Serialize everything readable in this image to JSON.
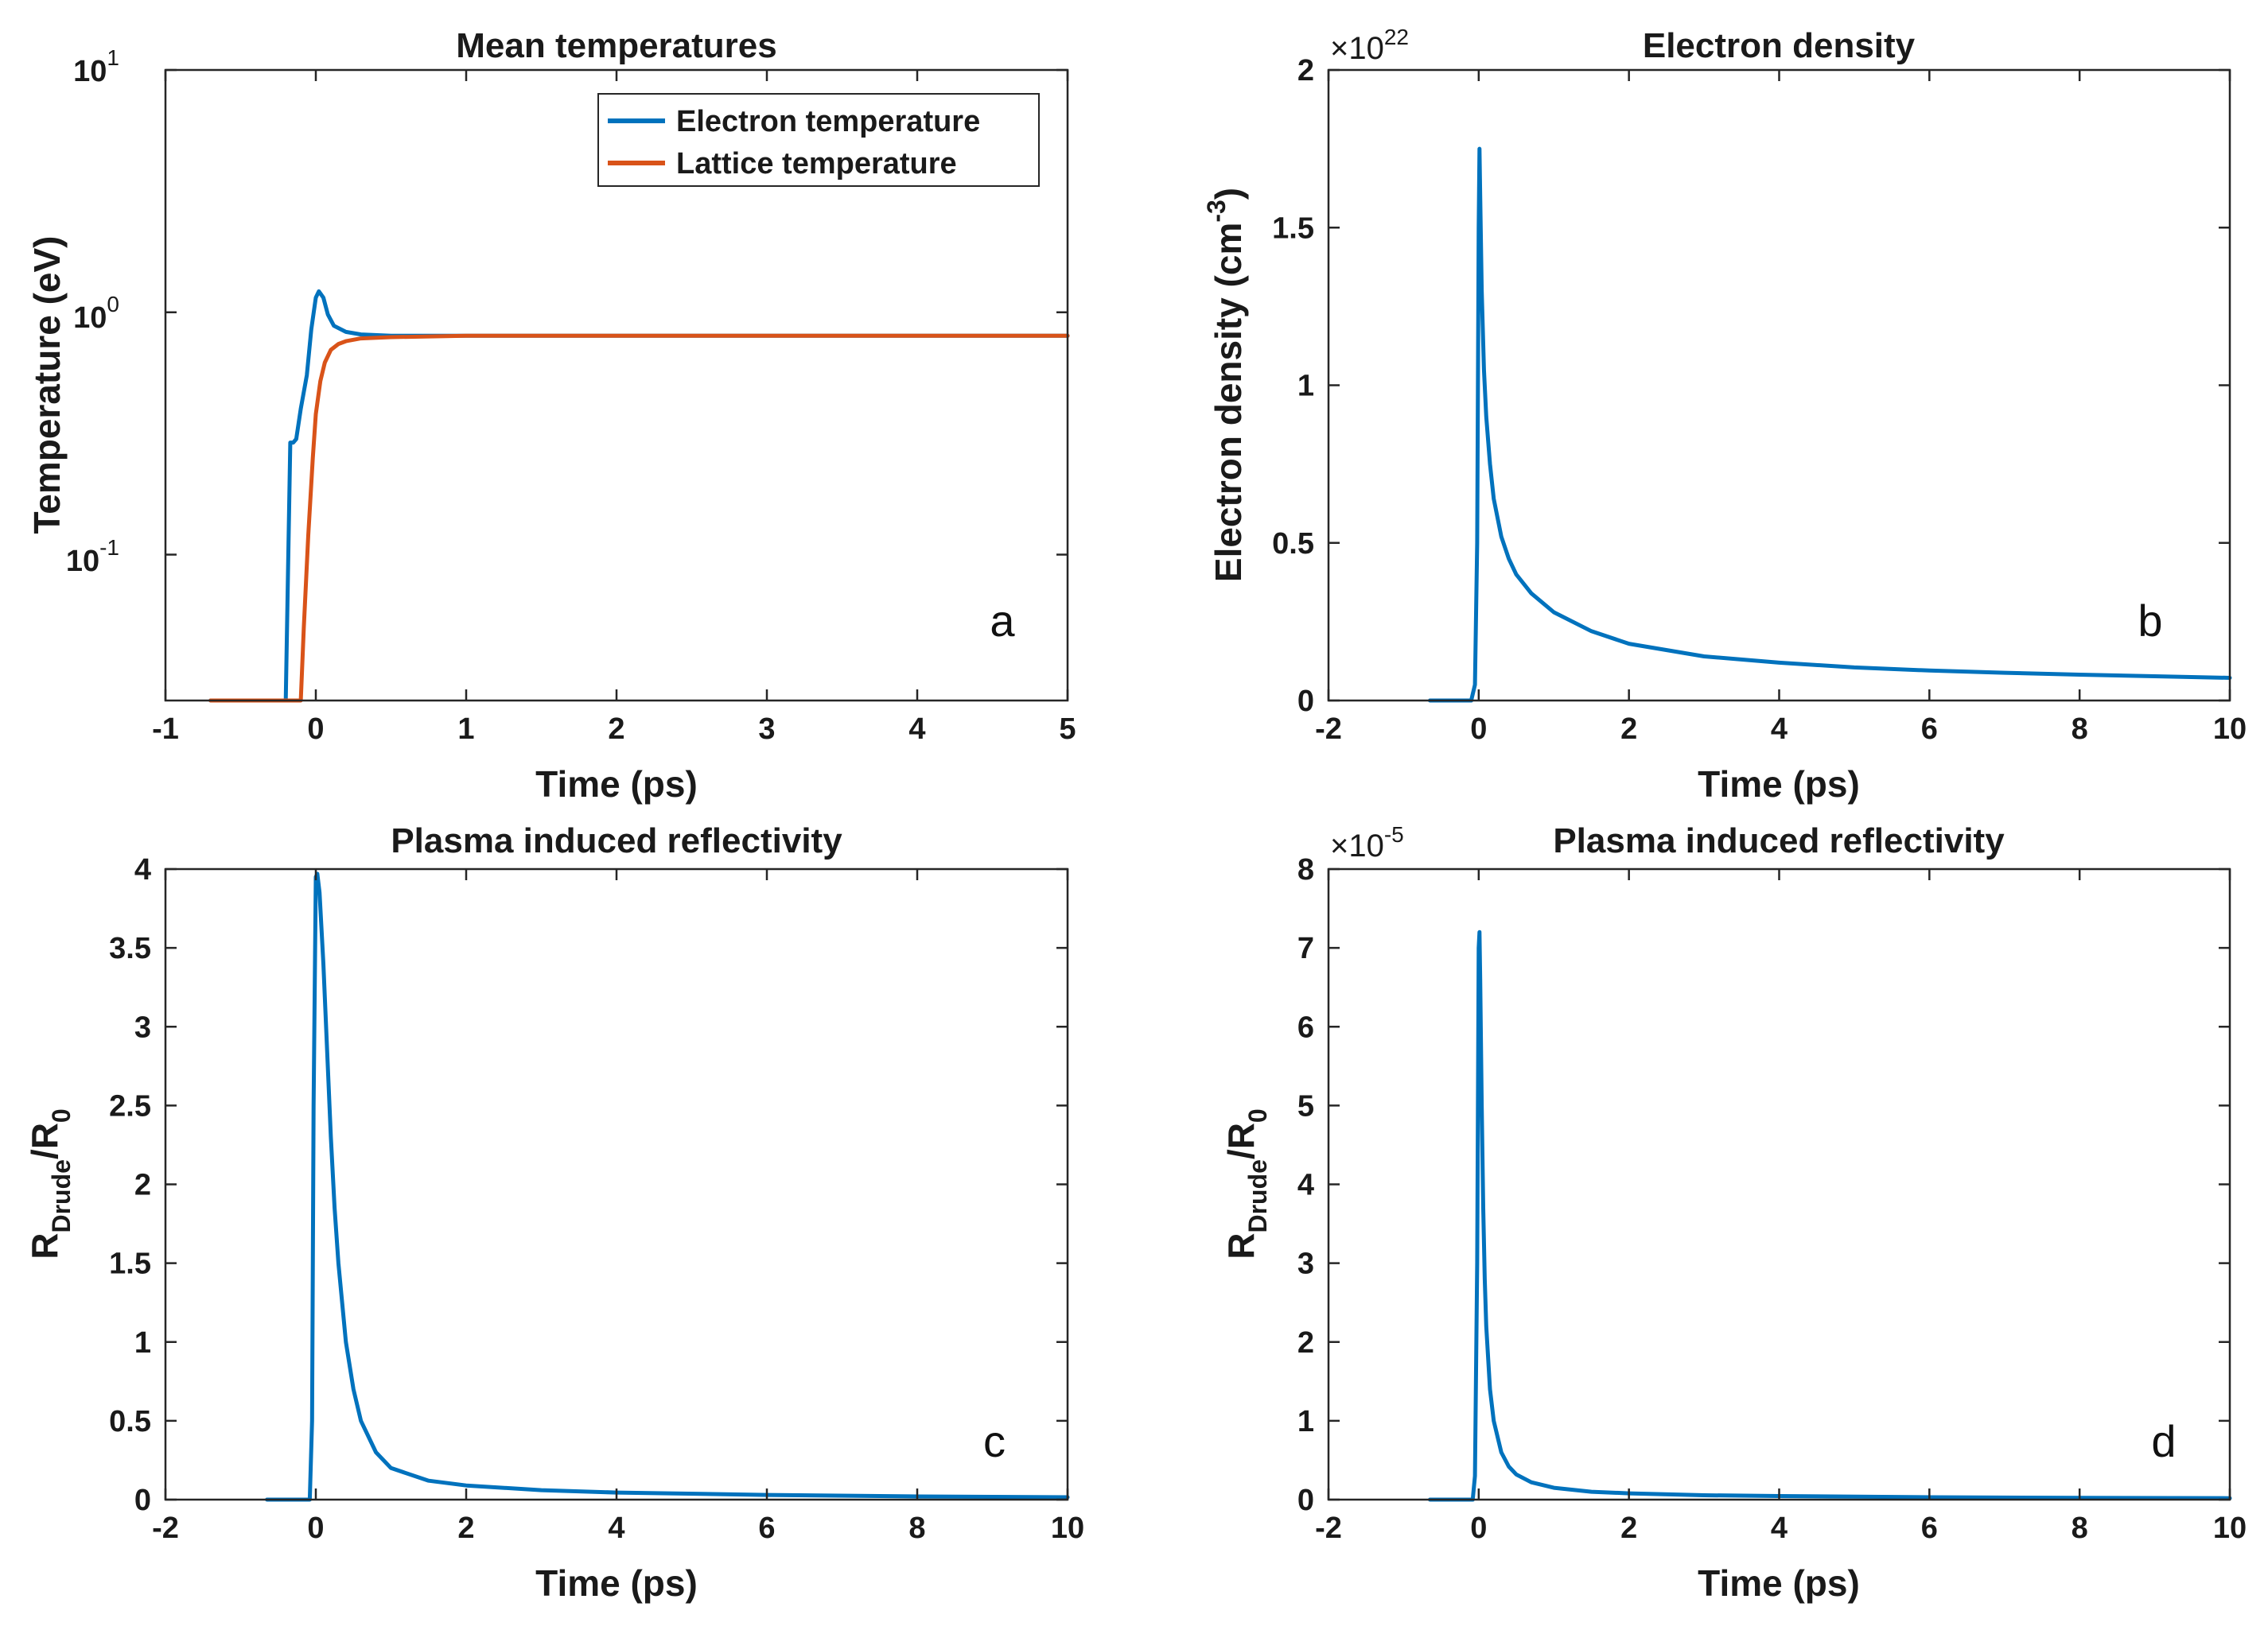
{
  "figure": {
    "colors": {
      "series_blue": "#0072BD",
      "series_orange": "#D95319",
      "axes": "#262626"
    },
    "panels": [
      {
        "id": "a",
        "letter": "a",
        "title": "Mean temperatures",
        "xlabel": "Time (ps)",
        "ylabel": "Temperature (eV)",
        "xticks": [
          "-1",
          "0",
          "1",
          "2",
          "3",
          "4",
          "5"
        ],
        "yticks_log": [
          {
            "base": "10",
            "exp": "1"
          },
          {
            "base": "10",
            "exp": "0"
          },
          {
            "base": "10",
            "exp": "-1"
          }
        ],
        "legend": [
          "Electron temperature",
          "Lattice temperature"
        ]
      },
      {
        "id": "b",
        "letter": "b",
        "title": "Electron density",
        "xlabel": "Time (ps)",
        "ylabel_main": "Electron density (cm",
        "ylabel_sup": "-3",
        "ylabel_end": ")",
        "xticks": [
          "-2",
          "0",
          "2",
          "4",
          "6",
          "8",
          "10"
        ],
        "yticks": [
          "0",
          "0.5",
          "1",
          "1.5",
          "2"
        ],
        "exponent_prefix": "×10",
        "exponent": "22"
      },
      {
        "id": "c",
        "letter": "c",
        "title": "Plasma induced reflectivity",
        "xlabel": "Time (ps)",
        "ylabel_r": "R",
        "ylabel_sub": "Drude",
        "ylabel_slash": "/R",
        "ylabel_sub2": "0",
        "xticks": [
          "-2",
          "0",
          "2",
          "4",
          "6",
          "8",
          "10"
        ],
        "yticks": [
          "0",
          "0.5",
          "1",
          "1.5",
          "2",
          "2.5",
          "3",
          "3.5",
          "4"
        ]
      },
      {
        "id": "d",
        "letter": "d",
        "title": "Plasma induced reflectivity",
        "xlabel": "Time (ps)",
        "ylabel_r": "R",
        "ylabel_sub": "Drude",
        "ylabel_slash": "/R",
        "ylabel_sub2": "0",
        "xticks": [
          "-2",
          "0",
          "2",
          "4",
          "6",
          "8",
          "10"
        ],
        "yticks": [
          "0",
          "1",
          "2",
          "3",
          "4",
          "5",
          "6",
          "7",
          "8"
        ],
        "exponent_prefix": "×10",
        "exponent": "-5"
      }
    ]
  },
  "chart_data": [
    {
      "type": "line",
      "title": "Mean temperatures",
      "xlabel": "Time (ps)",
      "ylabel": "Temperature (eV)",
      "xlim": [
        -1,
        5
      ],
      "ylim": [
        0.025,
        10
      ],
      "yscale": "log",
      "legend_placement": "top-right",
      "series": [
        {
          "name": "Electron temperature",
          "color": "#0072BD",
          "x": [
            -0.7,
            -0.2,
            -0.17,
            -0.15,
            -0.13,
            -0.1,
            -0.06,
            -0.03,
            0.0,
            0.02,
            0.05,
            0.08,
            0.12,
            0.2,
            0.3,
            0.5,
            1.0,
            2.0,
            3.0,
            4.0,
            5.0
          ],
          "y": [
            0.025,
            0.025,
            0.29,
            0.29,
            0.3,
            0.4,
            0.55,
            0.85,
            1.15,
            1.22,
            1.15,
            0.98,
            0.88,
            0.83,
            0.81,
            0.8,
            0.8,
            0.8,
            0.8,
            0.8,
            0.8
          ]
        },
        {
          "name": "Lattice temperature",
          "color": "#D95319",
          "x": [
            -0.7,
            -0.1,
            -0.08,
            -0.05,
            -0.02,
            0.0,
            0.03,
            0.06,
            0.1,
            0.15,
            0.2,
            0.3,
            0.5,
            1.0,
            2.0,
            3.0,
            4.0,
            5.0
          ],
          "y": [
            0.025,
            0.025,
            0.05,
            0.12,
            0.25,
            0.38,
            0.52,
            0.62,
            0.7,
            0.74,
            0.76,
            0.78,
            0.79,
            0.8,
            0.8,
            0.8,
            0.8,
            0.8
          ]
        }
      ]
    },
    {
      "type": "line",
      "title": "Electron density",
      "xlabel": "Time (ps)",
      "ylabel": "Electron density (cm^-3)",
      "xlim": [
        -2,
        10
      ],
      "ylim": [
        0,
        2
      ],
      "y_multiplier": "1e22",
      "series": [
        {
          "name": "Electron density",
          "color": "#0072BD",
          "x": [
            -0.65,
            -0.1,
            -0.05,
            -0.02,
            0.0,
            0.01,
            0.02,
            0.04,
            0.07,
            0.1,
            0.15,
            0.2,
            0.3,
            0.4,
            0.5,
            0.7,
            1.0,
            1.5,
            2.0,
            3.0,
            4.0,
            5.0,
            6.0,
            7.0,
            8.0,
            9.0,
            10.0
          ],
          "y": [
            0.0,
            0.0,
            0.05,
            0.5,
            1.5,
            1.75,
            1.6,
            1.3,
            1.05,
            0.9,
            0.75,
            0.64,
            0.52,
            0.45,
            0.4,
            0.34,
            0.28,
            0.22,
            0.18,
            0.14,
            0.12,
            0.105,
            0.095,
            0.088,
            0.082,
            0.077,
            0.072
          ]
        }
      ]
    },
    {
      "type": "line",
      "title": "Plasma induced reflectivity",
      "xlabel": "Time (ps)",
      "ylabel": "R_Drude/R_0",
      "xlim": [
        -2,
        10
      ],
      "ylim": [
        0,
        4
      ],
      "series": [
        {
          "name": "R_Drude/R_0",
          "color": "#0072BD",
          "x": [
            -0.65,
            -0.08,
            -0.05,
            -0.03,
            0.0,
            0.02,
            0.05,
            0.1,
            0.15,
            0.2,
            0.25,
            0.3,
            0.4,
            0.5,
            0.6,
            0.8,
            1.0,
            1.5,
            2.0,
            3.0,
            4.0,
            6.0,
            8.0,
            10.0
          ],
          "y": [
            0.0,
            0.0,
            0.5,
            2.5,
            3.95,
            3.97,
            3.85,
            3.4,
            2.85,
            2.3,
            1.85,
            1.5,
            1.0,
            0.7,
            0.5,
            0.3,
            0.2,
            0.12,
            0.09,
            0.06,
            0.045,
            0.03,
            0.02,
            0.015
          ]
        }
      ]
    },
    {
      "type": "line",
      "title": "Plasma induced reflectivity",
      "xlabel": "Time (ps)",
      "ylabel": "R_Drude/R_0",
      "xlim": [
        -2,
        10
      ],
      "ylim": [
        0,
        8
      ],
      "y_multiplier": "1e-5",
      "series": [
        {
          "name": "R_Drude/R_0",
          "color": "#0072BD",
          "x": [
            -0.65,
            -0.08,
            -0.05,
            -0.02,
            0.0,
            0.01,
            0.02,
            0.04,
            0.06,
            0.08,
            0.1,
            0.15,
            0.2,
            0.3,
            0.4,
            0.5,
            0.7,
            1.0,
            1.5,
            2.0,
            3.0,
            4.0,
            6.0,
            8.0,
            10.0
          ],
          "y": [
            0.0,
            0.0,
            0.3,
            3.0,
            7.0,
            7.2,
            6.6,
            5.0,
            3.7,
            2.8,
            2.2,
            1.4,
            1.0,
            0.6,
            0.42,
            0.32,
            0.22,
            0.15,
            0.1,
            0.08,
            0.055,
            0.045,
            0.03,
            0.022,
            0.018
          ]
        }
      ]
    }
  ]
}
